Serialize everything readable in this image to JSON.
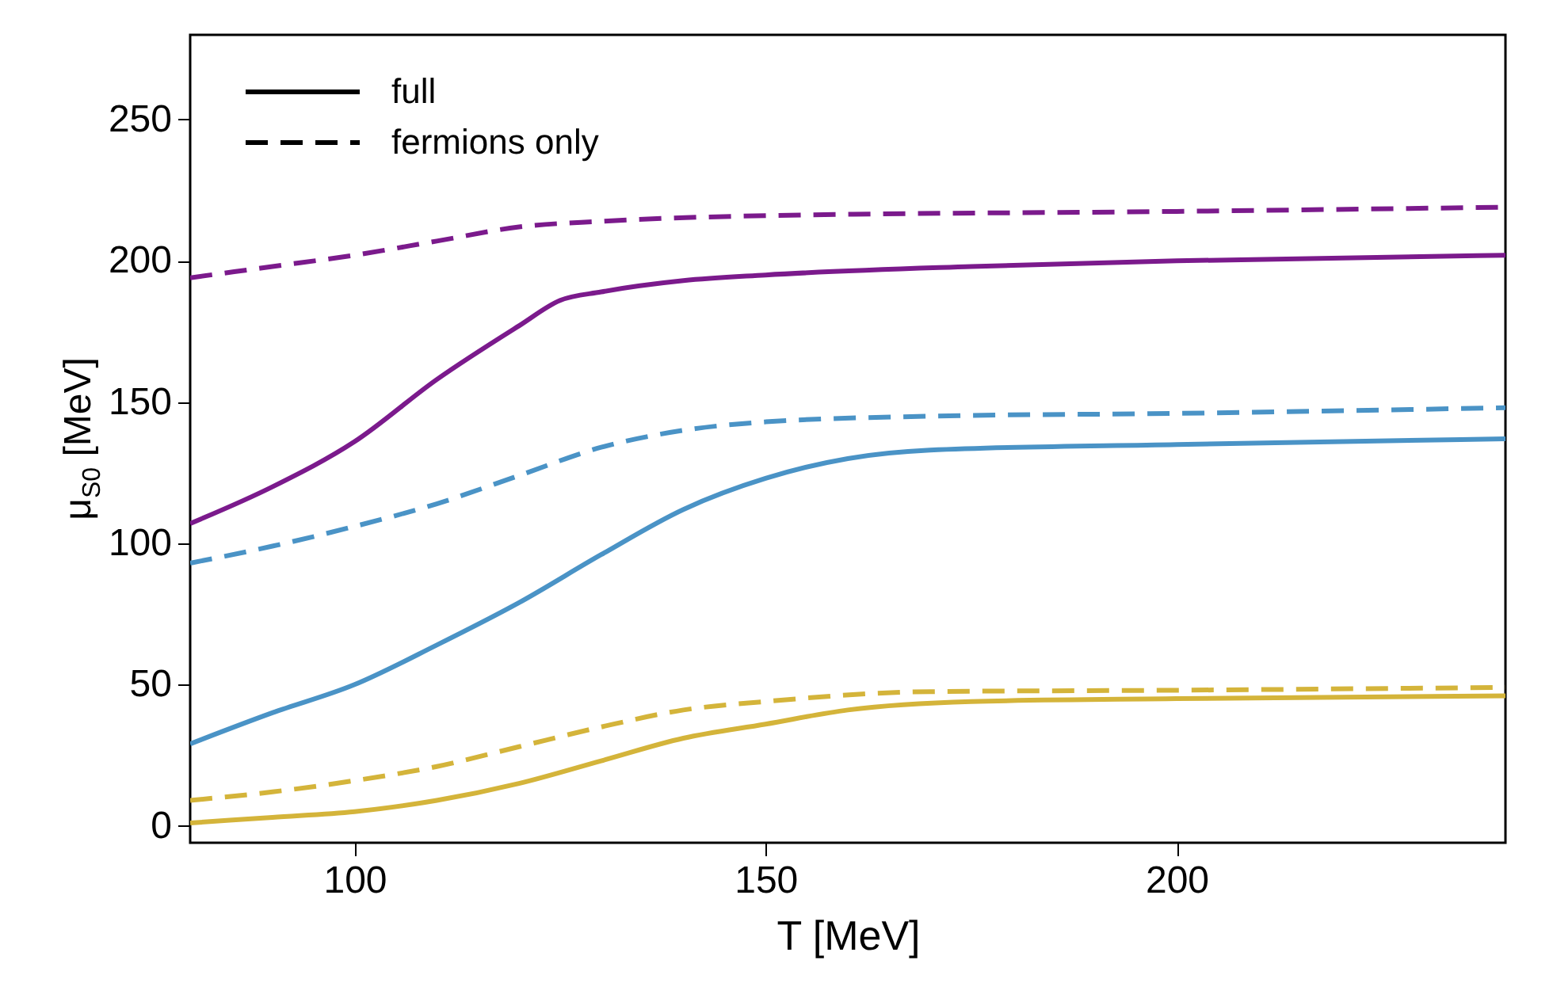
{
  "chart_data": {
    "type": "line",
    "xlabel": "T [MeV]",
    "ylabel": "μ$_{S0}$ [MeV]",
    "xlim": [
      80,
      240
    ],
    "xticks": [
      100,
      150,
      200
    ],
    "ylim": [
      -6,
      280
    ],
    "yticks": [
      0,
      50,
      100,
      150,
      200,
      250
    ],
    "grid": false,
    "marker": "none",
    "annotations": [
      "full",
      "fermions only"
    ],
    "series": [
      {
        "color": "#7b1a8c",
        "line_style": "solid",
        "x": [
          80,
          90,
          100,
          110,
          120,
          125,
          130,
          140,
          150,
          175,
          200,
          240
        ],
        "values": [
          107,
          120,
          136,
          158,
          177,
          186,
          189,
          193,
          195,
          198,
          200,
          202
        ]
      },
      {
        "color": "#7b1a8c",
        "line_style": "dashed",
        "x": [
          80,
          90,
          100,
          110,
          120,
          130,
          150,
          200,
          240
        ],
        "values": [
          194,
          198,
          202,
          207,
          212,
          214,
          216,
          217.5,
          219
        ]
      },
      {
        "color": "#4a93c6",
        "line_style": "solid",
        "x": [
          80,
          90,
          100,
          110,
          120,
          130,
          140,
          150,
          160,
          170,
          200,
          240
        ],
        "values": [
          29,
          40,
          50,
          64,
          79,
          96,
          112,
          123,
          130,
          133,
          135,
          137
        ]
      },
      {
        "color": "#4a93c6",
        "line_style": "dashed",
        "x": [
          80,
          90,
          100,
          110,
          120,
          130,
          140,
          150,
          170,
          200,
          240
        ],
        "values": [
          93,
          99,
          106,
          114,
          124,
          134,
          140,
          143,
          145,
          146,
          148
        ]
      },
      {
        "color": "#d4b43a",
        "line_style": "solid",
        "x": [
          80,
          90,
          100,
          110,
          120,
          130,
          140,
          150,
          160,
          175,
          200,
          240
        ],
        "values": [
          1,
          3,
          5,
          9,
          15,
          23,
          31,
          36,
          41,
          44,
          45,
          46
        ]
      },
      {
        "color": "#d4b43a",
        "line_style": "dashed",
        "x": [
          80,
          90,
          100,
          110,
          120,
          130,
          140,
          150,
          170,
          200,
          240
        ],
        "values": [
          9,
          12,
          16,
          21,
          28,
          35,
          41,
          44,
          47.5,
          48,
          49
        ]
      }
    ]
  }
}
